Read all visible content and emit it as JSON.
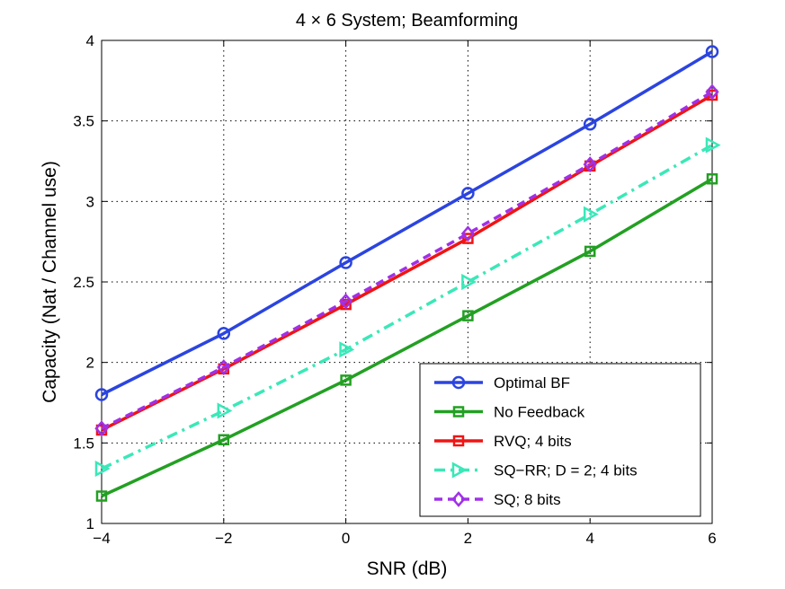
{
  "chart_data": {
    "type": "line",
    "title": "4 × 6 System; Beamforming",
    "xlabel": "SNR (dB)",
    "ylabel": "Capacity (Nat / Channel use)",
    "xlim": [
      -4,
      6
    ],
    "ylim": [
      1,
      4
    ],
    "xticks": [
      -4,
      -2,
      0,
      2,
      4,
      6
    ],
    "yticks": [
      1,
      1.5,
      2,
      2.5,
      3,
      3.5,
      4
    ],
    "xtick_labels": [
      "−4",
      "−2",
      "0",
      "2",
      "4",
      "6"
    ],
    "ytick_labels": [
      "1",
      "1.5",
      "2",
      "2.5",
      "3",
      "3.5",
      "4"
    ],
    "grid": true,
    "legend_position": "bottom-right",
    "x": [
      -4,
      -2,
      0,
      2,
      4,
      6
    ],
    "series": [
      {
        "name": "Optimal BF",
        "values": [
          1.8,
          2.18,
          2.62,
          3.05,
          3.48,
          3.93
        ],
        "color": "#2b44e0",
        "marker": "circle",
        "dash": "solid",
        "key": "optimal-bf"
      },
      {
        "name": "No Feedback",
        "values": [
          1.17,
          1.52,
          1.89,
          2.29,
          2.69,
          3.14
        ],
        "color": "#22a022",
        "marker": "square",
        "dash": "solid",
        "key": "no-feedback"
      },
      {
        "name": "RVQ; 4 bits",
        "values": [
          1.58,
          1.96,
          2.36,
          2.77,
          3.22,
          3.66
        ],
        "color": "#f01414",
        "marker": "square",
        "dash": "solid",
        "key": "rvq-4-bits"
      },
      {
        "name": "SQ−RR; D = 2; 4 bits",
        "values": [
          1.34,
          1.7,
          2.08,
          2.5,
          2.92,
          3.35
        ],
        "color": "#3ae8b8",
        "marker": "triangle-right",
        "dash": "dashdot",
        "key": "sq-rr-4-bits"
      },
      {
        "name": "SQ; 8 bits",
        "values": [
          1.59,
          1.97,
          2.38,
          2.8,
          3.23,
          3.68
        ],
        "color": "#a030e8",
        "marker": "diamond",
        "dash": "dashed",
        "key": "sq-8-bits"
      }
    ]
  }
}
